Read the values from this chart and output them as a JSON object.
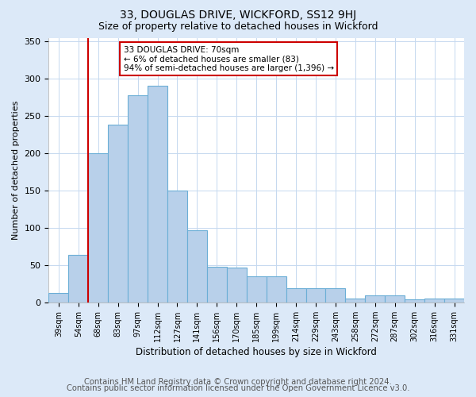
{
  "title": "33, DOUGLAS DRIVE, WICKFORD, SS12 9HJ",
  "subtitle": "Size of property relative to detached houses in Wickford",
  "xlabel": "Distribution of detached houses by size in Wickford",
  "ylabel": "Number of detached properties",
  "categories": [
    "39sqm",
    "54sqm",
    "68sqm",
    "83sqm",
    "97sqm",
    "112sqm",
    "127sqm",
    "141sqm",
    "156sqm",
    "170sqm",
    "185sqm",
    "199sqm",
    "214sqm",
    "229sqm",
    "243sqm",
    "258sqm",
    "272sqm",
    "287sqm",
    "302sqm",
    "316sqm",
    "331sqm"
  ],
  "values": [
    13,
    64,
    200,
    238,
    278,
    291,
    150,
    97,
    48,
    47,
    35,
    35,
    19,
    19,
    19,
    5,
    9,
    9,
    4,
    5,
    5
  ],
  "bar_color": "#b8d0ea",
  "bar_edge_color": "#6baed6",
  "vline_color": "#cc0000",
  "annotation_text": "33 DOUGLAS DRIVE: 70sqm\n← 6% of detached houses are smaller (83)\n94% of semi-detached houses are larger (1,396) →",
  "annotation_box_color": "#ffffff",
  "annotation_box_edge_color": "#cc0000",
  "ylim": [
    0,
    355
  ],
  "footer_line1": "Contains HM Land Registry data © Crown copyright and database right 2024.",
  "footer_line2": "Contains public sector information licensed under the Open Government Licence v3.0.",
  "bg_color": "#dce9f8",
  "plot_bg_color": "#ffffff",
  "title_fontsize": 10,
  "subtitle_fontsize": 9,
  "footer_fontsize": 7.2,
  "grid_color": "#c5d8ef"
}
